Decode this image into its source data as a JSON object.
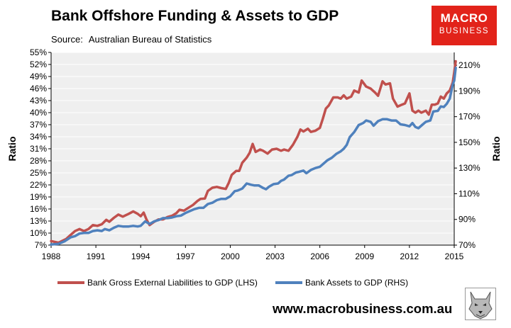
{
  "header": {
    "title": "Bank Offshore Funding & Assets to GDP",
    "source_label": "Source:",
    "source_value": "Australian Bureau of Statistics"
  },
  "logo": {
    "line1": "MACRO",
    "line2": "BUSINESS"
  },
  "footer": {
    "website": "www.macrobusiness.com.au"
  },
  "colors": {
    "lhs_series": "#c0504d",
    "rhs_series": "#4f81bd",
    "plot_bg": "#efefef",
    "logo_bg": "#e2231a"
  },
  "chart_data": {
    "type": "line",
    "title": "Bank Offshore Funding & Assets to GDP",
    "xlabel": "",
    "ylabel_left": "Ratio",
    "ylabel_right": "Ratio",
    "xlim": [
      1988,
      2015
    ],
    "ylim_left": [
      7,
      55
    ],
    "ylim_right": [
      70,
      220
    ],
    "x_ticks": [
      "1988",
      "1991",
      "1994",
      "1997",
      "2000",
      "2003",
      "2006",
      "2009",
      "2012",
      "2015"
    ],
    "y_left_ticks": [
      "55%",
      "52%",
      "49%",
      "46%",
      "43%",
      "40%",
      "37%",
      "34%",
      "31%",
      "28%",
      "25%",
      "22%",
      "19%",
      "16%",
      "13%",
      "10%",
      "7%"
    ],
    "y_right_ticks": [
      "210%",
      "190%",
      "170%",
      "150%",
      "130%",
      "110%",
      "90%",
      "70%"
    ],
    "legend": {
      "position": "bottom"
    },
    "series": [
      {
        "name": "Bank Gross External Liabilities to GDP (LHS)",
        "axis": "left",
        "points": [
          [
            1988.0,
            8.0
          ],
          [
            1988.5,
            7.6
          ],
          [
            1989.0,
            8.5
          ],
          [
            1989.3,
            9.5
          ],
          [
            1989.6,
            10.5
          ],
          [
            1989.9,
            11.0
          ],
          [
            1990.2,
            10.5
          ],
          [
            1990.5,
            11.0
          ],
          [
            1990.8,
            12.0
          ],
          [
            1991.1,
            11.8
          ],
          [
            1991.4,
            12.2
          ],
          [
            1991.7,
            13.3
          ],
          [
            1991.9,
            12.8
          ],
          [
            1992.2,
            13.8
          ],
          [
            1992.5,
            14.6
          ],
          [
            1992.8,
            14.1
          ],
          [
            1993.2,
            14.8
          ],
          [
            1993.5,
            15.4
          ],
          [
            1993.8,
            14.8
          ],
          [
            1994.0,
            14.2
          ],
          [
            1994.2,
            15.1
          ],
          [
            1994.4,
            13.3
          ],
          [
            1994.6,
            12.0
          ],
          [
            1994.9,
            12.8
          ],
          [
            1995.2,
            13.4
          ],
          [
            1995.5,
            13.4
          ],
          [
            1995.8,
            14.0
          ],
          [
            1996.1,
            14.3
          ],
          [
            1996.4,
            15.0
          ],
          [
            1996.6,
            15.8
          ],
          [
            1996.9,
            15.6
          ],
          [
            1997.2,
            16.3
          ],
          [
            1997.5,
            17.0
          ],
          [
            1997.8,
            18.0
          ],
          [
            1998.0,
            18.5
          ],
          [
            1998.3,
            18.6
          ],
          [
            1998.5,
            20.5
          ],
          [
            1998.8,
            21.3
          ],
          [
            1999.1,
            21.5
          ],
          [
            1999.4,
            21.2
          ],
          [
            1999.7,
            21.0
          ],
          [
            1999.9,
            22.5
          ],
          [
            2000.1,
            24.5
          ],
          [
            2000.4,
            25.5
          ],
          [
            2000.6,
            25.5
          ],
          [
            2000.8,
            27.5
          ],
          [
            2001.1,
            28.8
          ],
          [
            2001.3,
            30.0
          ],
          [
            2001.5,
            32.2
          ],
          [
            2001.7,
            30.2
          ],
          [
            2002.0,
            30.8
          ],
          [
            2002.2,
            30.5
          ],
          [
            2002.5,
            29.8
          ],
          [
            2002.8,
            30.8
          ],
          [
            2003.1,
            31.0
          ],
          [
            2003.4,
            30.5
          ],
          [
            2003.6,
            30.8
          ],
          [
            2003.9,
            30.5
          ],
          [
            2004.2,
            32.0
          ],
          [
            2004.5,
            34.0
          ],
          [
            2004.7,
            35.8
          ],
          [
            2004.9,
            35.3
          ],
          [
            2005.2,
            36.0
          ],
          [
            2005.4,
            35.2
          ],
          [
            2005.7,
            35.5
          ],
          [
            2006.0,
            36.2
          ],
          [
            2006.2,
            38.5
          ],
          [
            2006.4,
            41.0
          ],
          [
            2006.6,
            41.8
          ],
          [
            2006.9,
            43.8
          ],
          [
            2007.2,
            43.8
          ],
          [
            2007.4,
            43.5
          ],
          [
            2007.6,
            44.3
          ],
          [
            2007.8,
            43.5
          ],
          [
            2008.1,
            44.0
          ],
          [
            2008.3,
            45.5
          ],
          [
            2008.6,
            45.0
          ],
          [
            2008.8,
            48.0
          ],
          [
            2009.1,
            46.5
          ],
          [
            2009.4,
            46.0
          ],
          [
            2009.7,
            45.0
          ],
          [
            2009.9,
            44.2
          ],
          [
            2010.2,
            47.8
          ],
          [
            2010.4,
            47.0
          ],
          [
            2010.7,
            47.3
          ],
          [
            2010.9,
            43.5
          ],
          [
            2011.2,
            41.5
          ],
          [
            2011.5,
            42.0
          ],
          [
            2011.7,
            42.3
          ],
          [
            2012.0,
            44.8
          ],
          [
            2012.2,
            40.5
          ],
          [
            2012.4,
            40.0
          ],
          [
            2012.6,
            40.5
          ],
          [
            2012.8,
            40.0
          ],
          [
            2013.1,
            40.5
          ],
          [
            2013.3,
            39.5
          ],
          [
            2013.5,
            42.0
          ],
          [
            2013.7,
            42.0
          ],
          [
            2013.9,
            42.3
          ],
          [
            2014.1,
            44.0
          ],
          [
            2014.3,
            43.5
          ],
          [
            2014.5,
            44.8
          ],
          [
            2014.7,
            45.5
          ],
          [
            2014.9,
            47.5
          ],
          [
            2015.0,
            50.0
          ],
          [
            2015.1,
            52.8
          ]
        ]
      },
      {
        "name": "Bank Assets to GDP (RHS)",
        "axis": "right",
        "points": [
          [
            1988.0,
            70.5
          ],
          [
            1988.5,
            71.0
          ],
          [
            1988.9,
            73.0
          ],
          [
            1989.3,
            76.0
          ],
          [
            1989.6,
            77.0
          ],
          [
            1989.9,
            79.0
          ],
          [
            1990.2,
            79.5
          ],
          [
            1990.5,
            79.5
          ],
          [
            1990.8,
            81.0
          ],
          [
            1991.1,
            81.5
          ],
          [
            1991.4,
            81.0
          ],
          [
            1991.6,
            82.5
          ],
          [
            1991.9,
            81.5
          ],
          [
            1992.2,
            83.5
          ],
          [
            1992.5,
            85.0
          ],
          [
            1992.8,
            84.5
          ],
          [
            1993.2,
            84.5
          ],
          [
            1993.5,
            85.0
          ],
          [
            1993.8,
            84.5
          ],
          [
            1994.0,
            85.0
          ],
          [
            1994.3,
            88.5
          ],
          [
            1994.6,
            86.5
          ],
          [
            1994.9,
            88.5
          ],
          [
            1995.2,
            89.5
          ],
          [
            1995.5,
            91.0
          ],
          [
            1995.8,
            91.0
          ],
          [
            1996.1,
            91.5
          ],
          [
            1996.4,
            92.5
          ],
          [
            1996.7,
            93.0
          ],
          [
            1997.0,
            95.0
          ],
          [
            1997.3,
            96.5
          ],
          [
            1997.6,
            98.0
          ],
          [
            1997.9,
            99.0
          ],
          [
            1998.2,
            99.0
          ],
          [
            1998.5,
            102.0
          ],
          [
            1998.8,
            103.0
          ],
          [
            1999.1,
            105.0
          ],
          [
            1999.4,
            106.0
          ],
          [
            1999.7,
            106.0
          ],
          [
            2000.0,
            108.0
          ],
          [
            2000.3,
            112.0
          ],
          [
            2000.5,
            112.5
          ],
          [
            2000.8,
            114.0
          ],
          [
            2001.1,
            118.0
          ],
          [
            2001.4,
            117.0
          ],
          [
            2001.6,
            116.5
          ],
          [
            2001.9,
            116.5
          ],
          [
            2002.2,
            114.5
          ],
          [
            2002.4,
            113.5
          ],
          [
            2002.6,
            115.5
          ],
          [
            2002.9,
            117.5
          ],
          [
            2003.2,
            118.0
          ],
          [
            2003.4,
            120.0
          ],
          [
            2003.6,
            121.0
          ],
          [
            2003.9,
            124.0
          ],
          [
            2004.1,
            124.5
          ],
          [
            2004.4,
            126.5
          ],
          [
            2004.6,
            127.0
          ],
          [
            2004.9,
            128.0
          ],
          [
            2005.1,
            126.0
          ],
          [
            2005.4,
            128.5
          ],
          [
            2005.7,
            130.0
          ],
          [
            2006.0,
            131.0
          ],
          [
            2006.2,
            133.0
          ],
          [
            2006.5,
            136.0
          ],
          [
            2006.8,
            138.0
          ],
          [
            2007.1,
            141.0
          ],
          [
            2007.4,
            143.0
          ],
          [
            2007.6,
            145.0
          ],
          [
            2007.8,
            148.0
          ],
          [
            2008.0,
            154.0
          ],
          [
            2008.3,
            158.0
          ],
          [
            2008.6,
            163.5
          ],
          [
            2008.9,
            165.0
          ],
          [
            2009.1,
            167.0
          ],
          [
            2009.4,
            166.0
          ],
          [
            2009.6,
            163.0
          ],
          [
            2009.9,
            166.5
          ],
          [
            2010.2,
            168.0
          ],
          [
            2010.5,
            168.0
          ],
          [
            2010.8,
            167.0
          ],
          [
            2011.1,
            167.0
          ],
          [
            2011.4,
            164.0
          ],
          [
            2011.7,
            163.5
          ],
          [
            2012.0,
            162.5
          ],
          [
            2012.2,
            165.0
          ],
          [
            2012.4,
            162.0
          ],
          [
            2012.6,
            161.0
          ],
          [
            2012.9,
            164.0
          ],
          [
            2013.1,
            166.0
          ],
          [
            2013.4,
            167.0
          ],
          [
            2013.6,
            174.0
          ],
          [
            2013.9,
            174.5
          ],
          [
            2014.1,
            178.0
          ],
          [
            2014.3,
            177.5
          ],
          [
            2014.5,
            180.0
          ],
          [
            2014.7,
            184.0
          ],
          [
            2014.9,
            195.0
          ],
          [
            2015.0,
            198.0
          ],
          [
            2015.1,
            208.0
          ]
        ]
      }
    ]
  }
}
